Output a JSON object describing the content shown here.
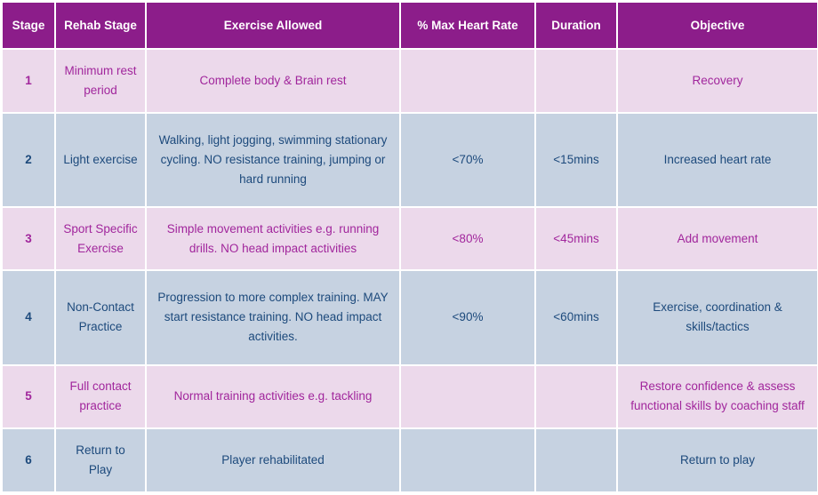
{
  "table": {
    "header": [
      "Stage",
      "Rehab Stage",
      "Exercise Allowed",
      "% Max Heart Rate",
      "Duration",
      "Objective"
    ],
    "rows": [
      {
        "stage": 1,
        "rehab_stage": "Minimum rest period",
        "exercise": "Complete body & Brain rest",
        "objective": "Recovery"
      },
      {
        "stage": 2,
        "rehab_stage": "Light exercise",
        "exercise": "Walking, light jogging, swimming stationary cycling. NO resistance training, jumping or hard running",
        "max_hr": "<70%",
        "duration": "<15mins",
        "objective": "Increased heart rate"
      },
      {
        "stage": 3,
        "rehab_stage": "Sport Specific Exercise",
        "exercise": "Simple movement activities e.g. running drills. NO head impact activities",
        "max_hr": "<80%",
        "duration": "<45mins",
        "objective": "Add movement"
      },
      {
        "stage": 4,
        "rehab_stage": "Non-Contact Practice",
        "exercise": "Progression to more complex training. MAY start resistance training. NO head impact activities.",
        "max_hr": "<90%",
        "duration": "<60mins",
        "objective": "Exercise, coordination & skills/tactics"
      },
      {
        "stage": 5,
        "rehab_stage": "Full contact practice",
        "exercise": "Normal training activities e.g. tackling",
        "objective": "Restore confidence & assess functional skills by coaching staff"
      },
      {
        "stage": 6,
        "rehab_stage": "Return to Play",
        "exercise": "Player rehabilitated",
        "objective": "Return to play"
      }
    ]
  }
}
